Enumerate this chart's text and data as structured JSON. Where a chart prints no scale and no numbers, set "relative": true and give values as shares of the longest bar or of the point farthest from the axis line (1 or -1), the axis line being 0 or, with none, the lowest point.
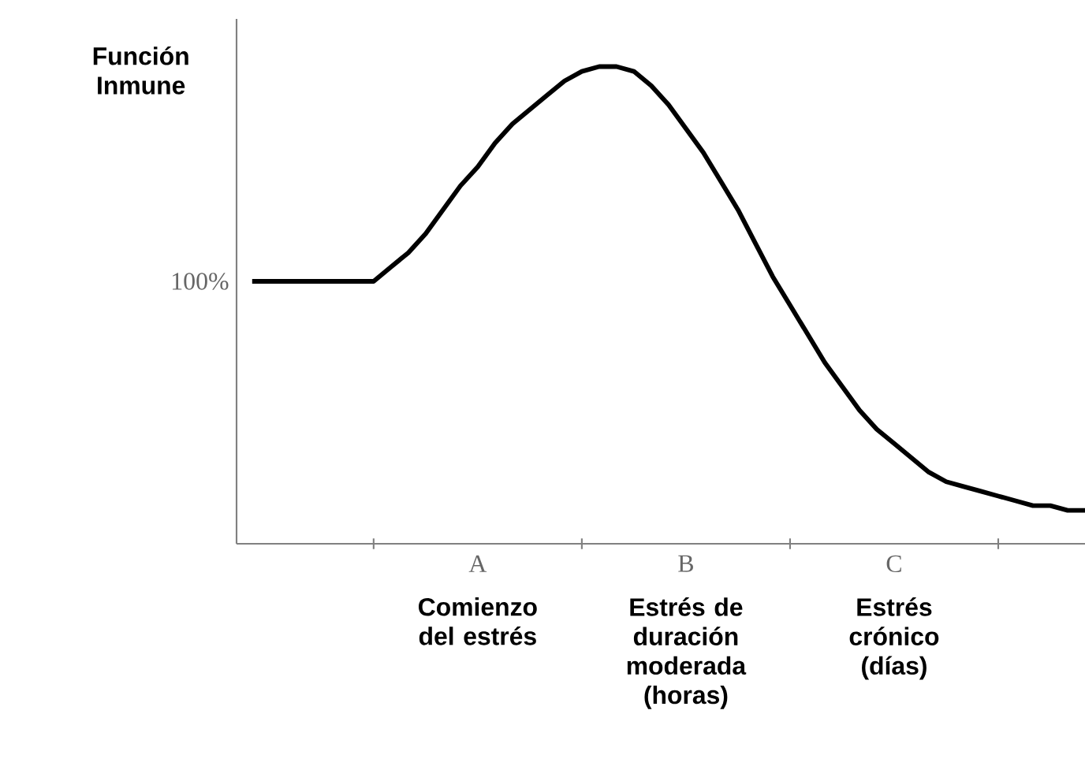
{
  "chart_data": {
    "type": "line",
    "relative": true,
    "ylabel": "Función Inmune",
    "color": "#000000",
    "marker": "none",
    "line_style": "solid",
    "grid": false,
    "categories": [
      null,
      null,
      null,
      null,
      null,
      null,
      null,
      null,
      null,
      null,
      null,
      null,
      null,
      "A",
      null,
      null,
      null,
      null,
      null,
      null,
      null,
      null,
      null,
      null,
      null,
      "B",
      null,
      null,
      null,
      null,
      null,
      null,
      null,
      null,
      null,
      null,
      null,
      "C",
      null,
      null,
      null,
      null,
      null,
      null,
      null,
      null,
      null,
      null,
      null
    ],
    "values": [
      0.55,
      0.55,
      0.55,
      0.55,
      0.55,
      0.55,
      0.55,
      0.55,
      0.58,
      0.61,
      0.65,
      0.7,
      0.75,
      0.79,
      0.84,
      0.88,
      0.91,
      0.94,
      0.97,
      0.99,
      1.0,
      1.0,
      0.99,
      0.96,
      0.92,
      0.87,
      0.82,
      0.76,
      0.7,
      0.63,
      0.56,
      0.5,
      0.44,
      0.38,
      0.33,
      0.28,
      0.24,
      0.21,
      0.18,
      0.15,
      0.13,
      0.12,
      0.11,
      0.1,
      0.09,
      0.08,
      0.08,
      0.07,
      0.07
    ],
    "tick_labels": "x",
    "annotations": [
      "100%",
      "Comienzo del estrés",
      "Estrés de duración moderada (horas)",
      "Estrés crónico (días)"
    ]
  }
}
